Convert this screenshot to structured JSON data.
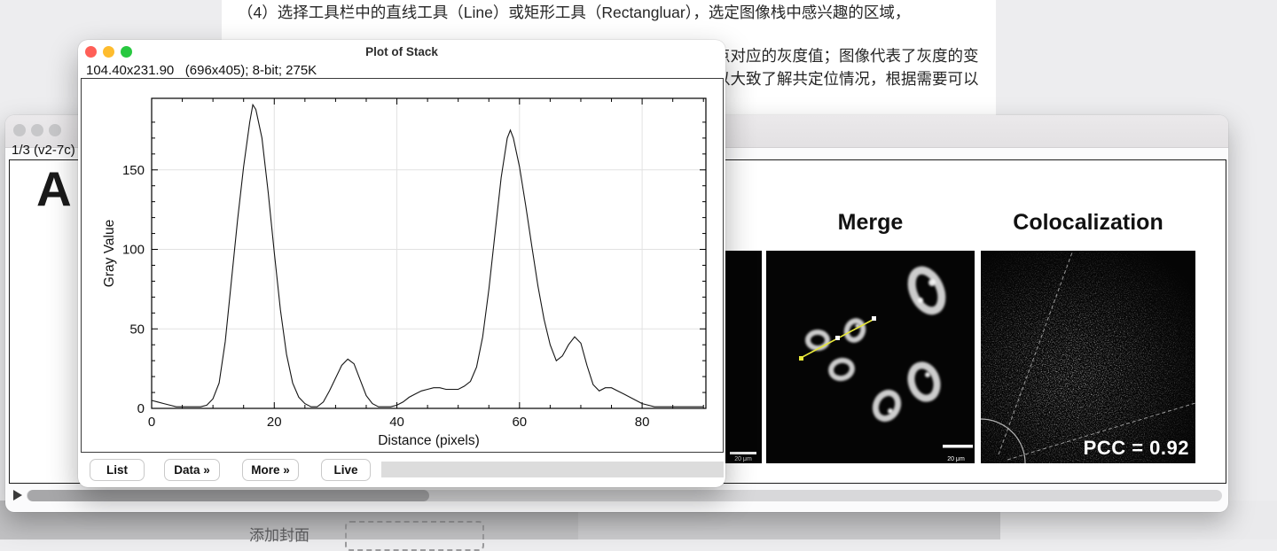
{
  "document": {
    "line1": "（4）选择工具栏中的直线工具（Line）或矩形工具（Rectangluar），选定图像栈中感兴趣的区域，",
    "right_line1": "点对应的灰度值；图像代表了灰度的变",
    "right_line2": "以大致了解共定位情况，根据需要可以",
    "add_cover_label": "添加封面"
  },
  "stack_window": {
    "slice_info": "1/3 (v2-7c)",
    "figure": {
      "panel_label": "A",
      "merge_title": "Merge",
      "coloc_title": "Colocalization",
      "pcc_label": "PCC = 0.92",
      "scalebar_label": "20 μm"
    }
  },
  "plot_window": {
    "title": "Plot of Stack",
    "info": "104.40x231.90   (696x405); 8-bit; 275K",
    "buttons": [
      "List",
      "Data »",
      "More »",
      "Live"
    ]
  },
  "colors": {
    "traffic_red": "#ff5f57",
    "traffic_yellow": "#febc2e",
    "traffic_green": "#28c840",
    "roi_yellow": "#e8e83a",
    "app_background": "#ededef"
  },
  "chart_data": {
    "type": "line",
    "title": "",
    "xlabel": "Distance (pixels)",
    "ylabel": "Gray Value",
    "xlim": [
      0,
      90.4
    ],
    "ylim": [
      0,
      195
    ],
    "x_ticks": [
      0,
      20,
      40,
      60,
      80
    ],
    "y_ticks": [
      0,
      50,
      100,
      150
    ],
    "x_minor_step": 5,
    "y_minor_step": 10,
    "grid": true,
    "points": [
      [
        0,
        5
      ],
      [
        1,
        4
      ],
      [
        2,
        3
      ],
      [
        3,
        2
      ],
      [
        4,
        1
      ],
      [
        5,
        1
      ],
      [
        6,
        1
      ],
      [
        7,
        1
      ],
      [
        8,
        1
      ],
      [
        9,
        2
      ],
      [
        10,
        6
      ],
      [
        11,
        16
      ],
      [
        12,
        42
      ],
      [
        13,
        80
      ],
      [
        14,
        118
      ],
      [
        15,
        152
      ],
      [
        16,
        180
      ],
      [
        16.5,
        191
      ],
      [
        17,
        188
      ],
      [
        18,
        170
      ],
      [
        19,
        136
      ],
      [
        20,
        98
      ],
      [
        21,
        62
      ],
      [
        22,
        34
      ],
      [
        23,
        16
      ],
      [
        24,
        7
      ],
      [
        25,
        3
      ],
      [
        26,
        1
      ],
      [
        27,
        1
      ],
      [
        28,
        4
      ],
      [
        29,
        11
      ],
      [
        30,
        19
      ],
      [
        31,
        27
      ],
      [
        32,
        31
      ],
      [
        33,
        28
      ],
      [
        34,
        18
      ],
      [
        35,
        8
      ],
      [
        36,
        3
      ],
      [
        37,
        1
      ],
      [
        38,
        1
      ],
      [
        39,
        1
      ],
      [
        40,
        2
      ],
      [
        41,
        4
      ],
      [
        42,
        7
      ],
      [
        43,
        9
      ],
      [
        44,
        11
      ],
      [
        45,
        12
      ],
      [
        46,
        13
      ],
      [
        47,
        13
      ],
      [
        48,
        12
      ],
      [
        49,
        12
      ],
      [
        50,
        12
      ],
      [
        51,
        14
      ],
      [
        52,
        17
      ],
      [
        53,
        26
      ],
      [
        54,
        45
      ],
      [
        55,
        75
      ],
      [
        56,
        110
      ],
      [
        57,
        145
      ],
      [
        58,
        170
      ],
      [
        58.5,
        175
      ],
      [
        59,
        170
      ],
      [
        60,
        152
      ],
      [
        61,
        128
      ],
      [
        62,
        102
      ],
      [
        63,
        77
      ],
      [
        64,
        56
      ],
      [
        65,
        40
      ],
      [
        66,
        30
      ],
      [
        67,
        33
      ],
      [
        68,
        40
      ],
      [
        69,
        45
      ],
      [
        70,
        41
      ],
      [
        71,
        27
      ],
      [
        72,
        15
      ],
      [
        73,
        11
      ],
      [
        74,
        13
      ],
      [
        75,
        13
      ],
      [
        76,
        11
      ],
      [
        77,
        9
      ],
      [
        78,
        7
      ],
      [
        79,
        5
      ],
      [
        80,
        3
      ],
      [
        81,
        2
      ],
      [
        82,
        1
      ],
      [
        83,
        1
      ],
      [
        84,
        1
      ],
      [
        85,
        1
      ],
      [
        86,
        1
      ],
      [
        87,
        1
      ],
      [
        88,
        1
      ],
      [
        89,
        1
      ],
      [
        90,
        1
      ]
    ]
  }
}
